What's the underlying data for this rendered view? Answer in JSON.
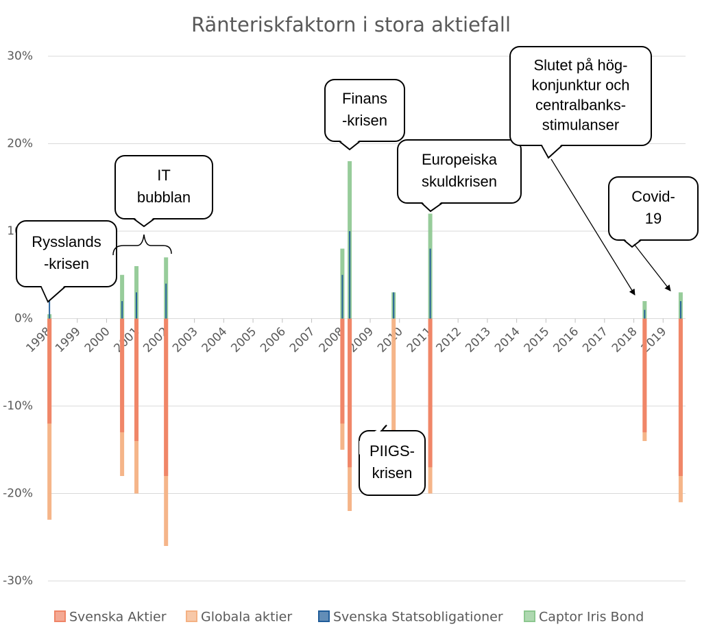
{
  "chart_data": {
    "type": "bar",
    "title": "Ränteriskfaktorn i stora aktiefall",
    "x": [
      1998.05,
      2000.53,
      2001.02,
      2002.03,
      2008.05,
      2008.3,
      2009.8,
      2011.05,
      2018.37,
      2019.6
    ],
    "xlim": [
      1998,
      2020
    ],
    "xticks": [
      1998,
      1999,
      2000,
      2001,
      2002,
      2003,
      2004,
      2005,
      2006,
      2007,
      2008,
      2009,
      2010,
      2011,
      2012,
      2013,
      2014,
      2015,
      2016,
      2017,
      2018,
      2019
    ],
    "ylim": [
      -30,
      30
    ],
    "yticks": [
      {
        "value": -30,
        "label": "-30%"
      },
      {
        "value": -20,
        "label": "-20%"
      },
      {
        "value": -10,
        "label": "-10%"
      },
      {
        "value": 0,
        "label": "0%"
      },
      {
        "value": 10,
        "label": "10%"
      },
      {
        "value": 20,
        "label": "20%"
      },
      {
        "value": 30,
        "label": "30%"
      }
    ],
    "grid": true,
    "series": [
      {
        "name": "Svenska Aktier",
        "color": "#ef8466",
        "values": [
          -12,
          -13,
          -14,
          -18,
          -12,
          -17,
          0,
          -17,
          -13,
          -18
        ]
      },
      {
        "name": "Globala aktier",
        "color": "#f4b183",
        "values": [
          -23,
          -18,
          -20,
          -26,
          -15,
          -22,
          -13,
          -20,
          -14,
          -21
        ]
      },
      {
        "name": "Svenska Statsobligationer",
        "color": "#1f5c99",
        "values": [
          2,
          2,
          3,
          4,
          5,
          10,
          3,
          8,
          1,
          2
        ]
      },
      {
        "name": "Captor Iris Bond",
        "color": "#8cc78f",
        "values": [
          0.5,
          5,
          6,
          7,
          8,
          18,
          3,
          12,
          2,
          3
        ]
      }
    ],
    "annotations": [
      {
        "lines": [
          "Rysslands",
          "-krisen"
        ]
      },
      {
        "lines": [
          "IT",
          "bubblan"
        ]
      },
      {
        "lines": [
          "Finans",
          "-krisen"
        ]
      },
      {
        "lines": [
          "PIIGS-",
          "krisen"
        ]
      },
      {
        "lines": [
          "Europeiska",
          "skuldkrisen"
        ]
      },
      {
        "lines": [
          "Slutet på hög-",
          "konjunktur och",
          "centralbanks-",
          "stimulanser"
        ]
      },
      {
        "lines": [
          "Covid-",
          "19"
        ]
      }
    ]
  }
}
